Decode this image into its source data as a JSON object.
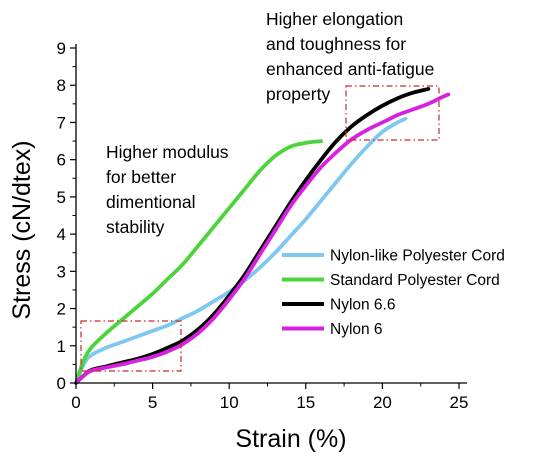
{
  "chart_data": {
    "type": "line",
    "xlabel": "Strain (%)",
    "ylabel": "Stress (cN/dtex)",
    "xlim": [
      0,
      25
    ],
    "ylim": [
      0,
      9
    ],
    "x_ticks": [
      0,
      5,
      10,
      15,
      20,
      25
    ],
    "y_ticks": [
      0,
      1,
      2,
      3,
      4,
      5,
      6,
      7,
      8,
      9
    ],
    "grid": false,
    "legend_position": "right-middle",
    "series": [
      {
        "name": "Nylon-like Polyester Cord",
        "color": "#7ec8f0",
        "x": [
          0,
          0.5,
          1,
          2,
          3,
          4,
          5,
          6,
          7,
          8,
          9,
          10,
          11,
          12,
          13,
          14,
          15,
          16,
          17,
          18,
          19,
          20,
          21,
          21.5
        ],
        "y": [
          0,
          0.5,
          0.75,
          0.95,
          1.1,
          1.25,
          1.4,
          1.55,
          1.75,
          1.95,
          2.2,
          2.45,
          2.75,
          3.1,
          3.5,
          3.95,
          4.4,
          4.9,
          5.4,
          5.9,
          6.35,
          6.75,
          7.0,
          7.1
        ]
      },
      {
        "name": "Standard Polyester Cord",
        "color": "#4cd43c",
        "x": [
          0,
          0.5,
          1,
          2,
          3,
          4,
          5,
          6,
          7,
          8,
          9,
          10,
          11,
          12,
          13,
          14,
          15,
          16
        ],
        "y": [
          0,
          0.6,
          0.95,
          1.35,
          1.7,
          2.05,
          2.4,
          2.8,
          3.2,
          3.7,
          4.2,
          4.7,
          5.2,
          5.7,
          6.1,
          6.35,
          6.45,
          6.5
        ]
      },
      {
        "name": "Nylon 6.6",
        "color": "#000000",
        "x": [
          0,
          0.5,
          1,
          2,
          3,
          4,
          5,
          6,
          7,
          8,
          9,
          10,
          11,
          12,
          13,
          14,
          15,
          16,
          17,
          18,
          19,
          20,
          21,
          22,
          23
        ],
        "y": [
          0,
          0.2,
          0.35,
          0.45,
          0.55,
          0.65,
          0.78,
          0.95,
          1.15,
          1.45,
          1.85,
          2.35,
          2.9,
          3.55,
          4.2,
          4.85,
          5.45,
          6.0,
          6.5,
          6.9,
          7.2,
          7.45,
          7.65,
          7.8,
          7.9
        ]
      },
      {
        "name": "Nylon 6",
        "color": "#d820e0",
        "x": [
          0,
          0.5,
          1,
          2,
          3,
          4,
          5,
          6,
          7,
          8,
          9,
          10,
          11,
          12,
          13,
          14,
          15,
          16,
          17,
          18,
          19,
          20,
          21,
          22,
          23,
          24,
          24.3
        ],
        "y": [
          0,
          0.2,
          0.33,
          0.42,
          0.5,
          0.6,
          0.7,
          0.85,
          1.05,
          1.35,
          1.75,
          2.25,
          2.8,
          3.45,
          4.1,
          4.75,
          5.3,
          5.8,
          6.2,
          6.55,
          6.8,
          7.0,
          7.2,
          7.35,
          7.5,
          7.7,
          7.75
        ]
      }
    ],
    "annotations": [
      {
        "lines": [
          "Higher elongation",
          "and toughness for",
          "enhanced anti-fatigue",
          "property"
        ]
      },
      {
        "lines": [
          "Higher modulus",
          "for better",
          "dimentional",
          "stability"
        ]
      }
    ]
  }
}
